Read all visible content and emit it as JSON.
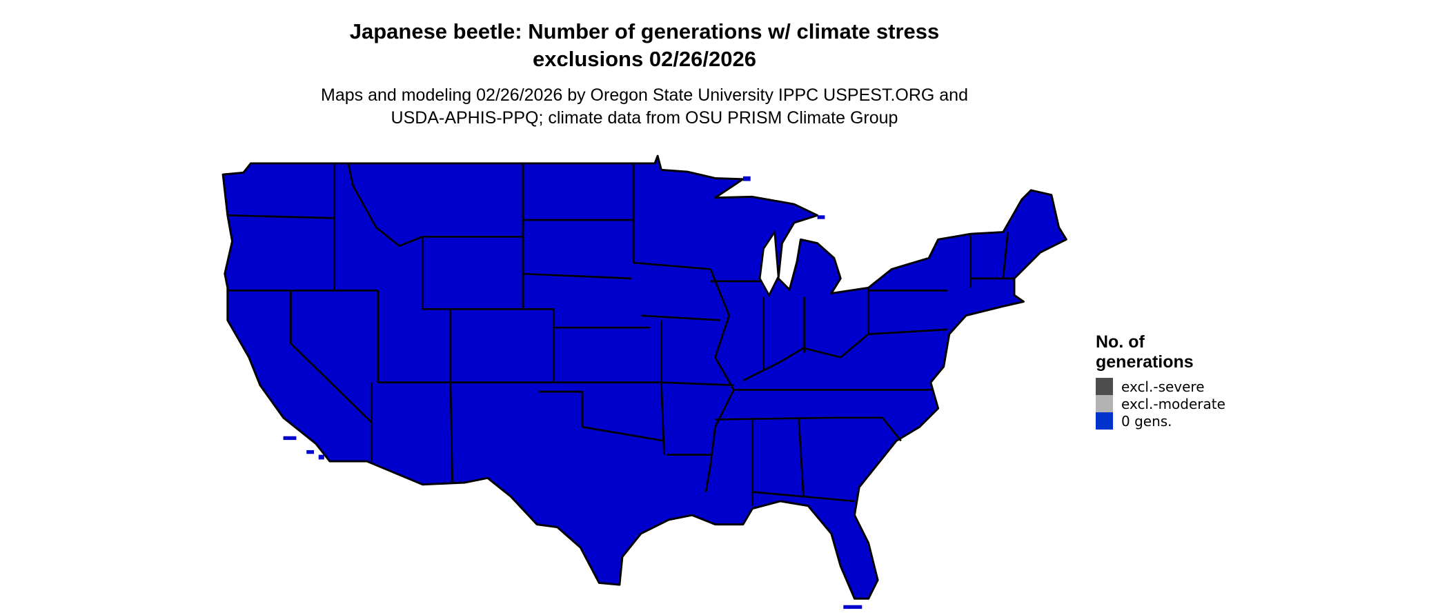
{
  "title": {
    "line1": "Japanese beetle: Number of generations w/ climate stress",
    "line2": "exclusions 02/26/2026"
  },
  "subtitle": {
    "line1": "Maps and modeling 02/26/2026 by Oregon State University IPPC USPEST.ORG and",
    "line2": "USDA-APHIS-PPQ; climate data from OSU PRISM Climate Group"
  },
  "map": {
    "region": "Contiguous United States",
    "fill_color": "#0000CC",
    "border_color": "#000000",
    "displayed_category": "0 gens."
  },
  "legend": {
    "title_line1": "No. of",
    "title_line2": "generations",
    "items": [
      {
        "label": "excl.-severe",
        "color": "#4D4D4D"
      },
      {
        "label": "excl.-moderate",
        "color": "#B3B3B3"
      },
      {
        "label": "0 gens.",
        "color": "#0033CC"
      }
    ]
  }
}
